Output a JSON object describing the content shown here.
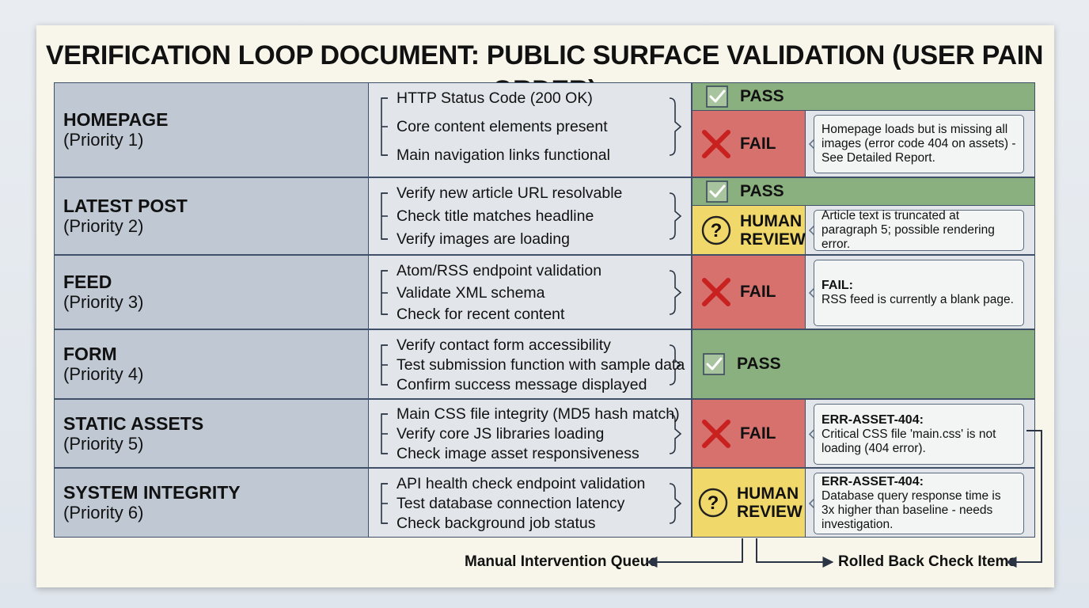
{
  "title": "VERIFICATION LOOP DOCUMENT: PUBLIC SURFACE VALIDATION (USER PAIN ORDER)",
  "colors": {
    "pass": "#8ab07f",
    "fail": "#d6716e",
    "review": "#f1d86a",
    "area": "#bfc8d3",
    "checks": "#e2e6ea"
  },
  "rows": [
    {
      "area": "HOMEPAGE",
      "priority": "(Priority 1)",
      "checks": [
        "HTTP Status Code (200 OK)",
        "Core content elements present",
        "Main navigation links functional"
      ],
      "statuses": [
        {
          "type": "pass",
          "icon": "check-icon",
          "label": "PASS"
        },
        {
          "type": "fail",
          "icon": "x-icon",
          "label": "FAIL",
          "note_code": "",
          "note": "Homepage loads but is missing all images (error code 404 on assets) - See Detailed Report."
        }
      ]
    },
    {
      "area": "LATEST POST",
      "priority": "(Priority 2)",
      "checks": [
        "Verify new article URL resolvable",
        "Check title matches headline",
        "Verify images are loading"
      ],
      "statuses": [
        {
          "type": "pass",
          "icon": "check-icon",
          "label": "PASS"
        },
        {
          "type": "review",
          "icon": "question-icon",
          "label": "HUMAN REVIEW",
          "note_code": "",
          "note": "Article text is truncated at paragraph 5; possible rendering error."
        }
      ]
    },
    {
      "area": "FEED",
      "priority": "(Priority 3)",
      "checks": [
        "Atom/RSS endpoint validation",
        "Validate XML schema",
        "Check for recent content"
      ],
      "statuses": [
        {
          "type": "fail",
          "icon": "x-icon",
          "label": "FAIL",
          "note_code": "FAIL:",
          "note": "RSS feed is currently a blank page."
        }
      ]
    },
    {
      "area": "FORM",
      "priority": "(Priority 4)",
      "checks": [
        "Verify contact form accessibility",
        "Test submission function with sample data",
        "Confirm success message displayed"
      ],
      "statuses": [
        {
          "type": "pass",
          "icon": "check-icon",
          "label": "PASS"
        }
      ]
    },
    {
      "area": "STATIC ASSETS",
      "priority": "(Priority 5)",
      "checks": [
        "Main CSS file integrity (MD5 hash match)",
        "Verify core JS libraries loading",
        "Check image asset responsiveness"
      ],
      "statuses": [
        {
          "type": "fail",
          "icon": "x-icon",
          "label": "FAIL",
          "note_code": "ERR-ASSET-404:",
          "note": "Critical CSS file 'main.css' is not loading (404 error)."
        }
      ]
    },
    {
      "area": "SYSTEM INTEGRITY",
      "priority": "(Priority 6)",
      "checks": [
        "API health check endpoint validation",
        "Test database connection latency",
        "Check background job status"
      ],
      "statuses": [
        {
          "type": "review",
          "icon": "question-icon",
          "label": "HUMAN REVIEW",
          "note_code": "ERR-ASSET-404:",
          "note": "Database query response time is 3x higher than baseline - needs investigation."
        }
      ]
    }
  ],
  "flows": {
    "manual_queue": "Manual Intervention Queue",
    "rolled_back": "Rolled Back Check Items"
  }
}
